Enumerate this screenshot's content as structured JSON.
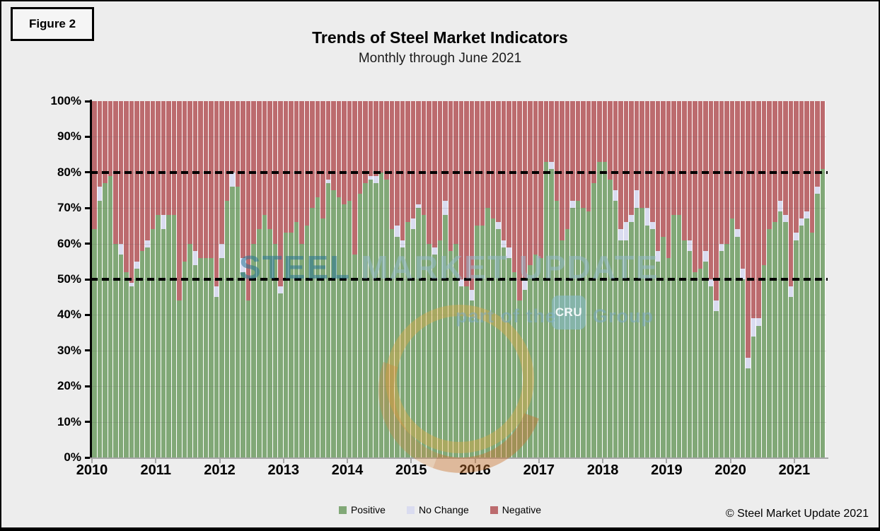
{
  "figure_label": "Figure 2",
  "title": "Trends of Steel Market Indicators",
  "subtitle": "Monthly through June 2021",
  "copyright": "© Steel Market Update 2021",
  "watermark": {
    "word1": "STEEL",
    "word2": " MARKET UPDATE",
    "tagline_prefix": "part of the",
    "badge": "CRU",
    "tagline_suffix": "Group",
    "logo": "orange-ring-swoosh"
  },
  "colors": {
    "positive": "#81A877",
    "no_change": "#DADCF0",
    "negative": "#BC6B6E",
    "axis_y": "#000000",
    "axis_x": "#A6A6A6",
    "reference_line": "#000000",
    "background": "#EDEDED"
  },
  "legend": [
    {
      "label": "Positive",
      "color": "#81A877"
    },
    {
      "label": "No Change",
      "color": "#DADCF0"
    },
    {
      "label": "Negative",
      "color": "#BC6B6E"
    }
  ],
  "y_axis": {
    "tick_labels": [
      "100%",
      "90%",
      "80%",
      "70%",
      "60%",
      "50%",
      "40%",
      "30%",
      "20%",
      "10%",
      "0%"
    ],
    "min": 0,
    "max": 100,
    "step": 10
  },
  "x_axis": {
    "year_labels": [
      "2010",
      "2011",
      "2012",
      "2013",
      "2014",
      "2015",
      "2016",
      "2017",
      "2018",
      "2019",
      "2020",
      "2021"
    ],
    "months_per_year": 12,
    "last_month_shown": "June 2021"
  },
  "chart_data": {
    "type": "bar",
    "stacked": true,
    "stacked_to": 100,
    "title": "Trends of Steel Market Indicators",
    "subtitle": "Monthly through June 2021",
    "x_start": "2010-01",
    "x_end": "2021-06",
    "n_bars": 138,
    "ylim": [
      0,
      100
    ],
    "grid": "horizontal-faint",
    "reference_lines": [
      50,
      80
    ],
    "legend_position": "bottom-center",
    "series": [
      {
        "name": "Positive",
        "values": [
          64,
          72,
          77,
          79,
          60,
          57,
          52,
          48,
          53,
          58,
          59,
          64,
          68,
          64,
          68,
          68,
          44,
          55,
          60,
          54,
          56,
          56,
          56,
          45,
          56,
          72,
          76,
          76,
          52,
          44,
          60,
          64,
          68,
          64,
          60,
          46,
          63,
          63,
          66,
          60,
          65,
          70,
          73,
          67,
          77,
          75,
          73,
          71,
          72,
          57,
          74,
          77,
          78,
          77,
          80,
          78,
          64,
          62,
          59,
          66,
          64,
          70,
          68,
          60,
          57,
          61,
          68,
          58,
          60,
          48,
          48,
          44,
          65,
          65,
          70,
          67,
          64,
          59,
          56,
          52,
          44,
          47,
          54,
          57,
          56,
          83,
          81,
          72,
          61,
          64,
          70,
          72,
          70,
          69,
          77,
          83,
          83,
          78,
          72,
          61,
          61,
          66,
          70,
          70,
          65,
          64,
          55,
          62,
          56,
          68,
          68,
          61,
          58,
          52,
          53,
          55,
          48,
          41,
          58,
          60,
          67,
          62,
          50,
          25,
          34,
          37,
          54,
          64,
          66,
          69,
          66,
          45,
          61,
          65,
          67,
          63,
          74,
          81
        ]
      },
      {
        "name": "No Change",
        "values": [
          0,
          4,
          0,
          0,
          0,
          3,
          0,
          1,
          2,
          0,
          2,
          0,
          0,
          4,
          0,
          0,
          0,
          0,
          0,
          4,
          0,
          0,
          0,
          3,
          4,
          0,
          4,
          0,
          4,
          0,
          0,
          0,
          0,
          0,
          0,
          2,
          0,
          0,
          0,
          0,
          0,
          0,
          0,
          0,
          1,
          0,
          0,
          0,
          0,
          0,
          0,
          0,
          1,
          2,
          0,
          0,
          0,
          3,
          2,
          0,
          3,
          1,
          0,
          0,
          2,
          0,
          4,
          0,
          0,
          2,
          0,
          3,
          0,
          0,
          0,
          0,
          2,
          2,
          3,
          0,
          0,
          3,
          0,
          0,
          0,
          0,
          2,
          0,
          0,
          0,
          2,
          0,
          0,
          0,
          0,
          0,
          0,
          0,
          3,
          3,
          5,
          2,
          5,
          0,
          5,
          2,
          3,
          0,
          0,
          0,
          0,
          0,
          3,
          0,
          0,
          3,
          2,
          3,
          2,
          0,
          0,
          2,
          3,
          3,
          5,
          2,
          0,
          0,
          0,
          3,
          2,
          3,
          2,
          2,
          2,
          0,
          2,
          0
        ]
      },
      {
        "name": "Negative",
        "values": [
          36,
          24,
          23,
          21,
          40,
          40,
          48,
          51,
          45,
          42,
          39,
          36,
          32,
          32,
          32,
          32,
          56,
          45,
          40,
          42,
          44,
          44,
          44,
          52,
          40,
          28,
          20,
          24,
          44,
          56,
          40,
          36,
          32,
          36,
          40,
          52,
          37,
          37,
          34,
          40,
          35,
          30,
          27,
          33,
          22,
          25,
          27,
          29,
          28,
          43,
          26,
          23,
          21,
          21,
          20,
          22,
          36,
          35,
          39,
          34,
          33,
          29,
          32,
          40,
          41,
          39,
          28,
          42,
          40,
          50,
          52,
          53,
          35,
          35,
          30,
          33,
          34,
          39,
          41,
          48,
          56,
          50,
          46,
          43,
          44,
          17,
          17,
          28,
          39,
          36,
          28,
          28,
          30,
          31,
          23,
          17,
          17,
          22,
          25,
          36,
          34,
          32,
          25,
          30,
          30,
          34,
          42,
          38,
          44,
          32,
          32,
          39,
          39,
          48,
          47,
          42,
          50,
          56,
          40,
          40,
          33,
          36,
          47,
          72,
          61,
          61,
          46,
          36,
          34,
          28,
          32,
          52,
          37,
          33,
          31,
          37,
          24,
          19
        ]
      }
    ]
  }
}
